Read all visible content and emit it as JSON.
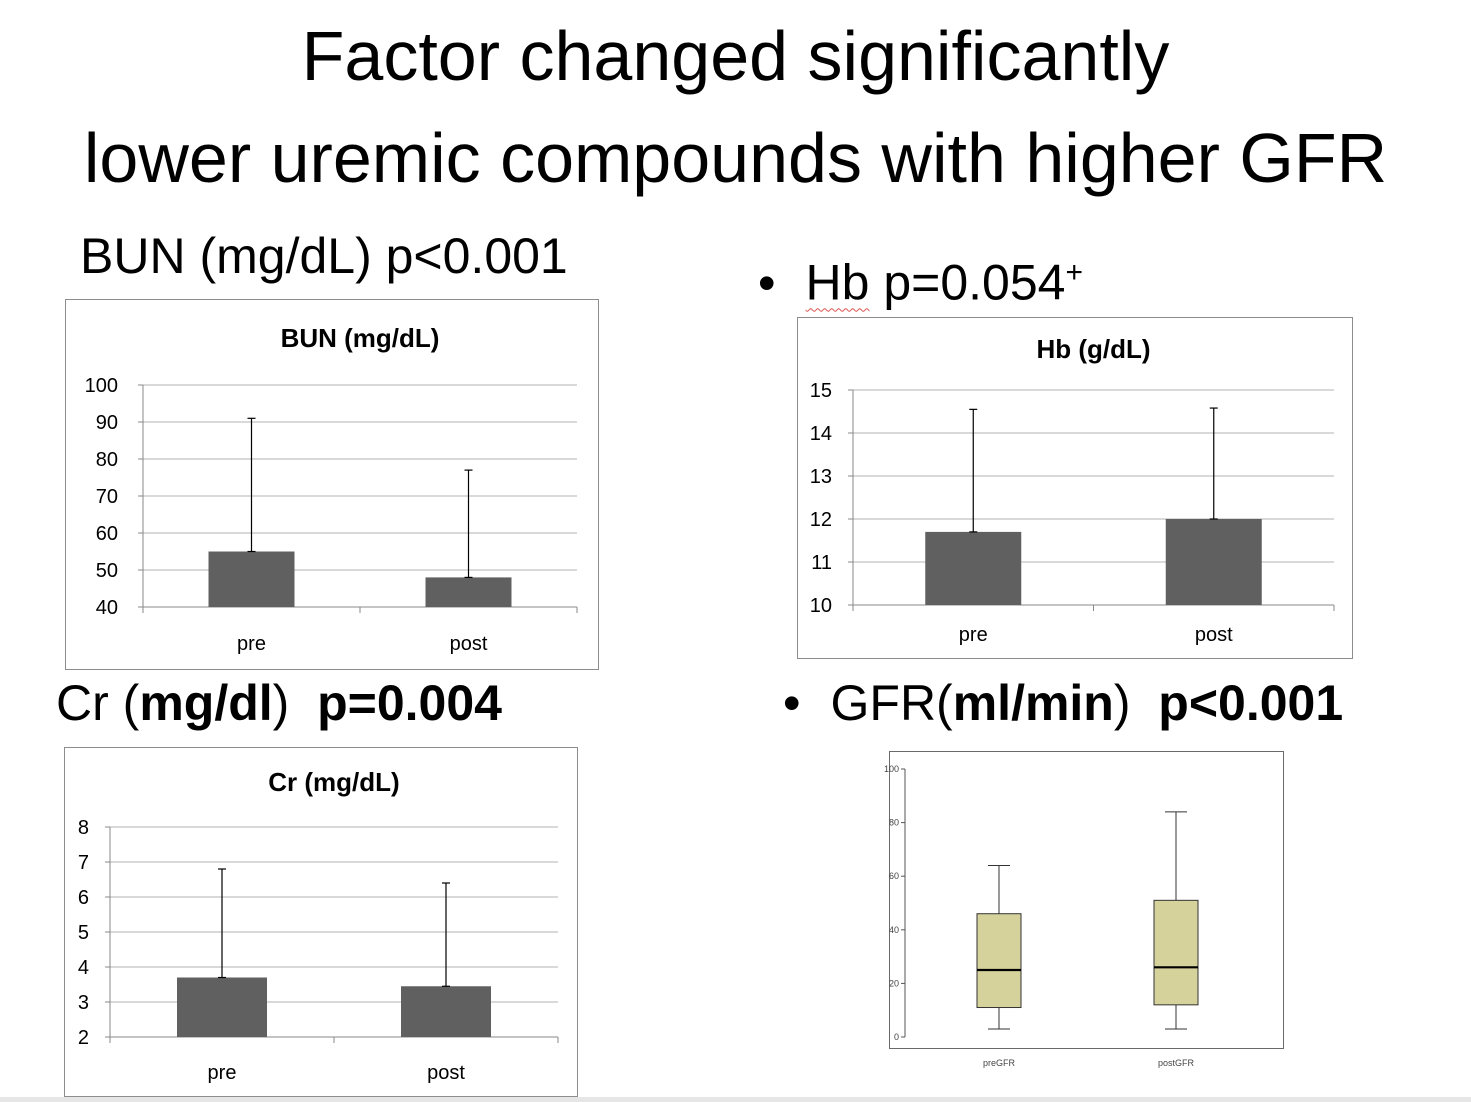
{
  "slide": {
    "title_line1": "Factor changed significantly",
    "title_line2": "lower uremic compounds with higher GFR"
  },
  "headings": {
    "bun": {
      "text": "BUN (mg/dL) p<0.001"
    },
    "hb": {
      "bullet": "•",
      "name": "Hb",
      "p": " p=0.054",
      "sup": "+"
    },
    "cr": {
      "name": "Cr (",
      "unit": "mg/dl",
      "close": ")  ",
      "p": "p=0.004"
    },
    "gfr": {
      "bullet": "•",
      "name": "GFR(",
      "unit": "ml/min",
      "close": ")  ",
      "p": "p<0.001"
    }
  },
  "colors": {
    "bar": "#606060",
    "box": "#d6d29c",
    "grid": "#b3b3b3"
  },
  "chart_data": [
    {
      "id": "bun",
      "type": "bar",
      "title": "BUN (mg/dL)",
      "categories": [
        "pre",
        "post"
      ],
      "values": [
        55,
        48
      ],
      "error_upper": [
        91,
        77
      ],
      "ylim": [
        40,
        100
      ],
      "yticks": [
        40,
        50,
        60,
        70,
        80,
        90,
        100
      ],
      "grid": true
    },
    {
      "id": "hb",
      "type": "bar",
      "title": "Hb (g/dL)",
      "categories": [
        "pre",
        "post"
      ],
      "values": [
        11.7,
        12.0
      ],
      "error_upper": [
        14.55,
        14.58
      ],
      "ylim": [
        10,
        15
      ],
      "yticks": [
        10,
        11,
        12,
        13,
        14,
        15
      ],
      "grid": true
    },
    {
      "id": "cr",
      "type": "bar",
      "title": "Cr (mg/dL)",
      "categories": [
        "pre",
        "post"
      ],
      "values": [
        3.7,
        3.45
      ],
      "error_upper": [
        6.8,
        6.4
      ],
      "ylim": [
        2,
        8
      ],
      "yticks": [
        2,
        3,
        4,
        5,
        6,
        7,
        8
      ],
      "grid": true
    },
    {
      "id": "gfr",
      "type": "box",
      "categories": [
        "preGFR",
        "postGFR"
      ],
      "boxes": [
        {
          "min": 3,
          "q1": 11,
          "median": 25,
          "q3": 46,
          "max": 64
        },
        {
          "min": 3,
          "q1": 12,
          "median": 26,
          "q3": 51,
          "max": 84
        }
      ],
      "ylim": [
        0,
        100
      ],
      "yticks": [
        0,
        20,
        40,
        60,
        80,
        100
      ],
      "grid": false
    }
  ]
}
